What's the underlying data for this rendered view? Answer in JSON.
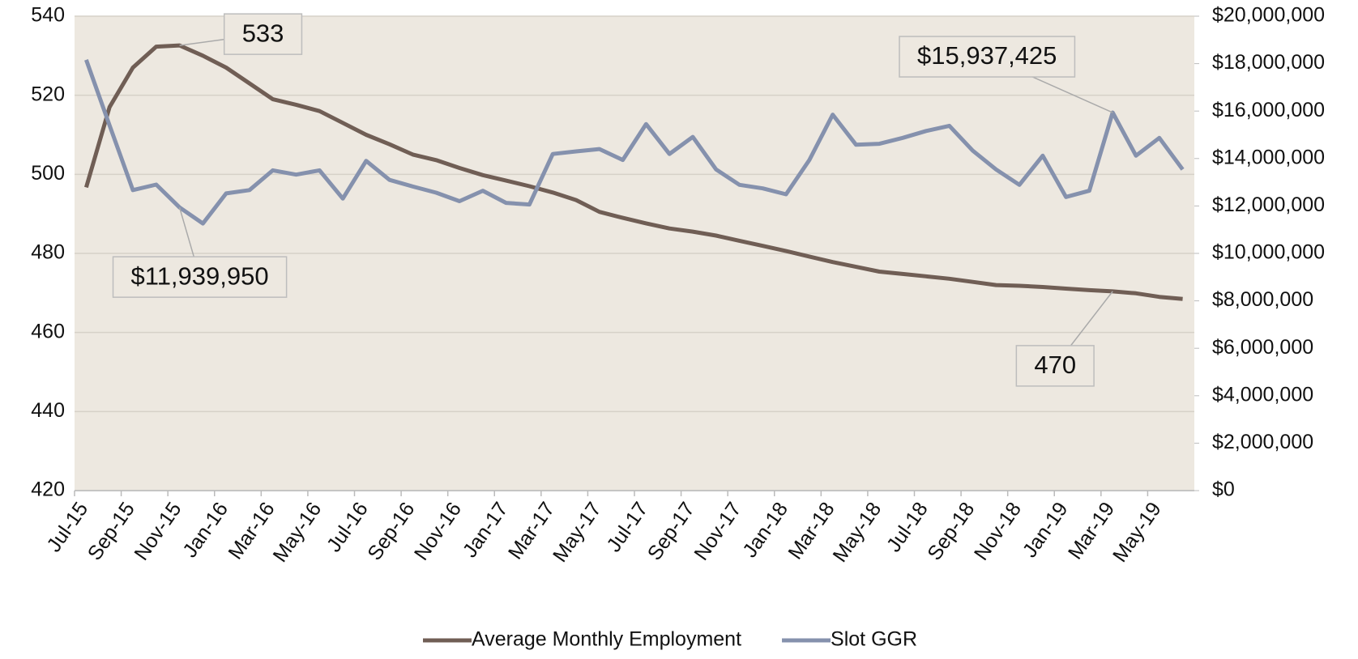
{
  "chart_data": {
    "type": "line",
    "categories": [
      "Jul-15",
      null,
      "Sep-15",
      null,
      "Nov-15",
      null,
      "Jan-16",
      null,
      "Mar-16",
      null,
      "May-16",
      null,
      "Jul-16",
      null,
      "Sep-16",
      null,
      "Nov-16",
      null,
      "Jan-17",
      null,
      "Mar-17",
      null,
      "May-17",
      null,
      "Jul-17",
      null,
      "Sep-17",
      null,
      "Nov-17",
      null,
      "Jan-18",
      null,
      "Mar-18",
      null,
      "May-18",
      null,
      "Jul-18",
      null,
      "Sep-18",
      null,
      "Nov-18",
      null,
      "Jan-19",
      null,
      "Mar-19",
      null,
      "May-19",
      null
    ],
    "series": [
      {
        "name": "Average Monthly Employment",
        "color": "#705e55",
        "values": [
          496.7,
          517,
          527,
          532.3,
          532.6,
          530,
          527,
          523,
          519,
          517.6,
          516,
          513,
          510,
          507.6,
          505,
          503.6,
          501.6,
          499.8,
          498.4,
          497,
          495.4,
          493.5,
          490.5,
          489,
          487.6,
          486.3,
          485.5,
          484.5,
          483.2,
          481.9,
          480.6,
          479.2,
          477.8,
          476.6,
          475.4,
          474.8,
          474.2,
          473.6,
          472.8,
          472,
          471.8,
          471.5,
          471.1,
          470.7,
          470.4,
          469.9,
          469,
          468.5
        ],
        "value_labels": [
          null,
          null,
          null,
          null,
          "533",
          null,
          null,
          null,
          null,
          null,
          null,
          null,
          null,
          null,
          null,
          null,
          null,
          null,
          null,
          null,
          null,
          null,
          null,
          null,
          null,
          null,
          null,
          null,
          null,
          null,
          null,
          null,
          null,
          null,
          null,
          null,
          null,
          null,
          null,
          null,
          null,
          null,
          null,
          null,
          "470",
          null,
          null,
          null
        ]
      },
      {
        "name": "Slot GGR",
        "color": "#8591ad",
        "axis": "y2",
        "values": [
          18160000,
          15400000,
          12670000,
          12900000,
          11939950,
          11260000,
          12530000,
          12670000,
          13500000,
          13320000,
          13500000,
          12310000,
          13900000,
          13100000,
          12820000,
          12560000,
          12200000,
          12640000,
          12130000,
          12060000,
          14190000,
          14300000,
          14400000,
          13940000,
          15450000,
          14190000,
          14910000,
          13540000,
          12890000,
          12740000,
          12490000,
          13940000,
          15850000,
          14580000,
          14620000,
          14870000,
          15160000,
          15380000,
          14330000,
          13540000,
          12890000,
          14120000,
          12380000,
          12640000,
          15937425,
          14120000,
          14870000,
          13540000
        ],
        "value_labels": [
          null,
          null,
          null,
          null,
          "$11,939,950",
          null,
          null,
          null,
          null,
          null,
          null,
          null,
          null,
          null,
          null,
          null,
          null,
          null,
          null,
          null,
          null,
          null,
          null,
          null,
          null,
          null,
          null,
          null,
          null,
          null,
          null,
          null,
          null,
          null,
          null,
          null,
          null,
          null,
          null,
          null,
          null,
          null,
          null,
          null,
          "$15,937,425",
          null,
          null,
          null
        ]
      }
    ],
    "ylim": [
      420,
      540
    ],
    "yticks": [
      420,
      440,
      460,
      480,
      500,
      520,
      540
    ],
    "y2lim": [
      0,
      20000000
    ],
    "y2ticks": [
      {
        "value": 0,
        "label": "$0"
      },
      {
        "value": 2000000,
        "label": "$2,000,000"
      },
      {
        "value": 4000000,
        "label": "$4,000,000"
      },
      {
        "value": 6000000,
        "label": "$6,000,000"
      },
      {
        "value": 8000000,
        "label": "$8,000,000"
      },
      {
        "value": 10000000,
        "label": "$10,000,000"
      },
      {
        "value": 12000000,
        "label": "$12,000,000"
      },
      {
        "value": 14000000,
        "label": "$14,000,000"
      },
      {
        "value": 16000000,
        "label": "$16,000,000"
      },
      {
        "value": 18000000,
        "label": "$18,000,000"
      },
      {
        "value": 20000000,
        "label": "$20,000,000"
      }
    ],
    "grid": true,
    "legend": "bottom"
  }
}
